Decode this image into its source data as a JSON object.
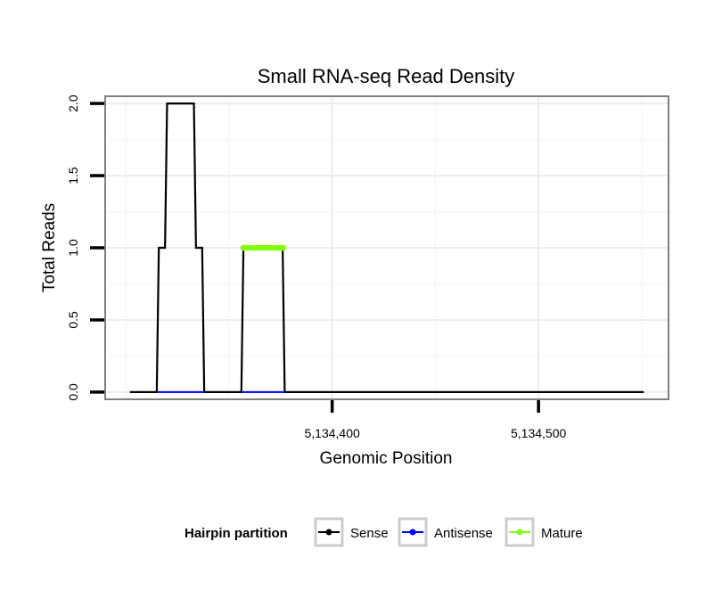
{
  "chart_data": {
    "type": "line",
    "title": "Small RNA-seq Read Density",
    "xlabel": "Genomic Position",
    "ylabel": "Total Reads",
    "xlim": [
      5134290,
      5134563
    ],
    "ylim": [
      -0.05,
      2.05
    ],
    "x_ticks": [
      {
        "value": 5134400,
        "label": "5,134,400"
      },
      {
        "value": 5134500,
        "label": "5,134,500"
      }
    ],
    "y_ticks": [
      {
        "value": 0,
        "label": "0.0"
      },
      {
        "value": 0.5,
        "label": "0.5"
      },
      {
        "value": 1.0,
        "label": "1.0"
      },
      {
        "value": 1.5,
        "label": "1.5"
      },
      {
        "value": 2.0,
        "label": "2.0"
      }
    ],
    "grid": true,
    "legend": {
      "title": "Hairpin partition",
      "position": "bottom",
      "items": [
        {
          "label": "Sense",
          "color": "#000000"
        },
        {
          "label": "Antisense",
          "color": "#0000ff"
        },
        {
          "label": "Mature",
          "color": "#7fff00"
        }
      ]
    },
    "series": [
      {
        "name": "Sense",
        "color": "#000000",
        "x": [
          5134302,
          5134315,
          5134316,
          5134319,
          5134320,
          5134333,
          5134334,
          5134337,
          5134338,
          5134356,
          5134357,
          5134376,
          5134377,
          5134551
        ],
        "y": [
          0,
          0,
          1,
          1,
          2,
          2,
          1,
          1,
          0,
          0,
          1,
          1,
          0,
          0
        ]
      },
      {
        "name": "Antisense",
        "color": "#0000ff",
        "x": [
          5134315,
          5134338,
          5134356,
          5134377
        ],
        "y": [
          0,
          0,
          0,
          0
        ],
        "segments": [
          [
            0,
            1
          ],
          [
            2,
            3
          ]
        ]
      },
      {
        "name": "Mature",
        "color": "#7fff00",
        "x": [
          5134357,
          5134376
        ],
        "y": [
          1,
          1
        ]
      }
    ]
  }
}
